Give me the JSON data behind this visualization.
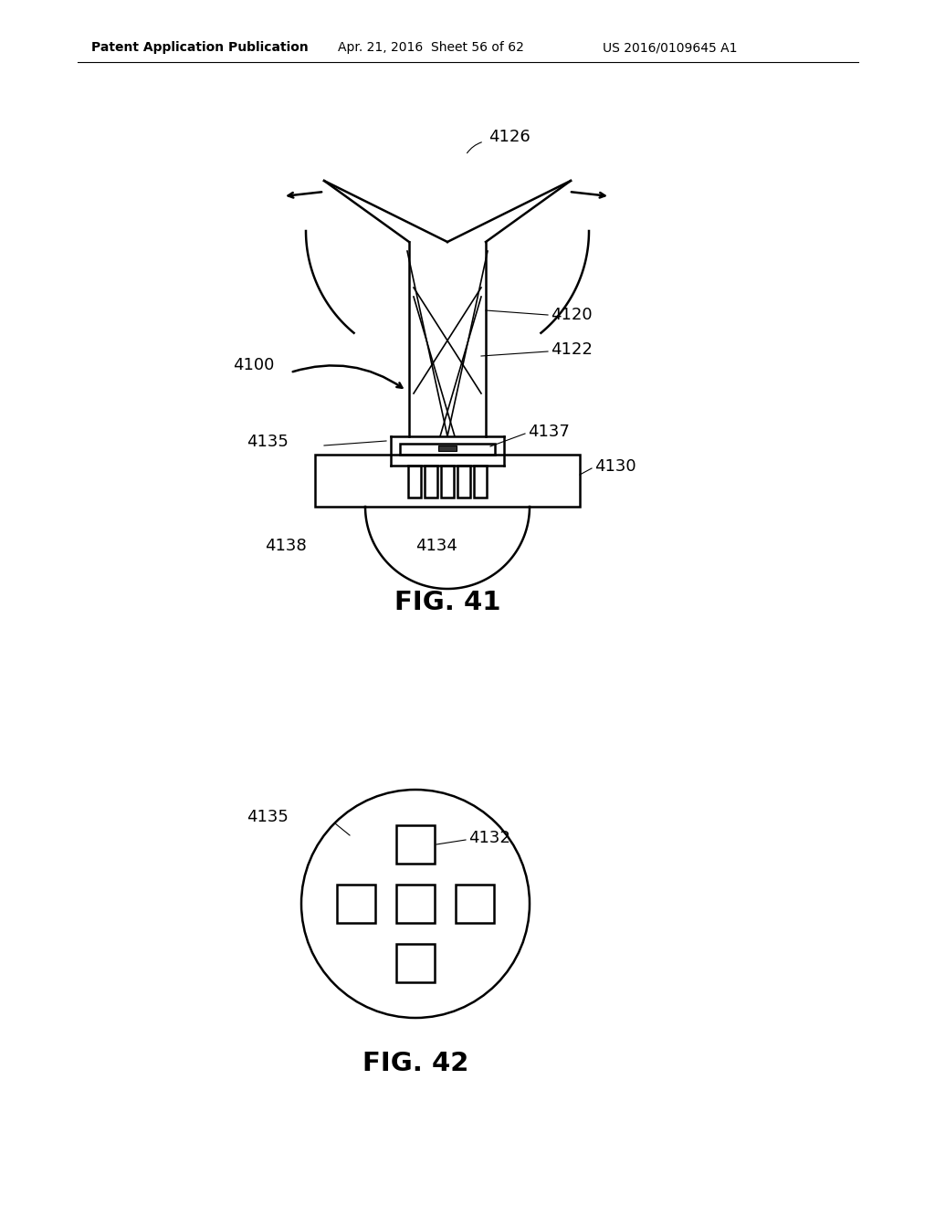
{
  "bg_color": "#ffffff",
  "header_text": "Patent Application Publication",
  "header_date": "Apr. 21, 2016  Sheet 56 of 62",
  "header_patent": "US 2016/0109645 A1",
  "fig41_caption": "FIG. 41",
  "fig42_caption": "FIG. 42"
}
